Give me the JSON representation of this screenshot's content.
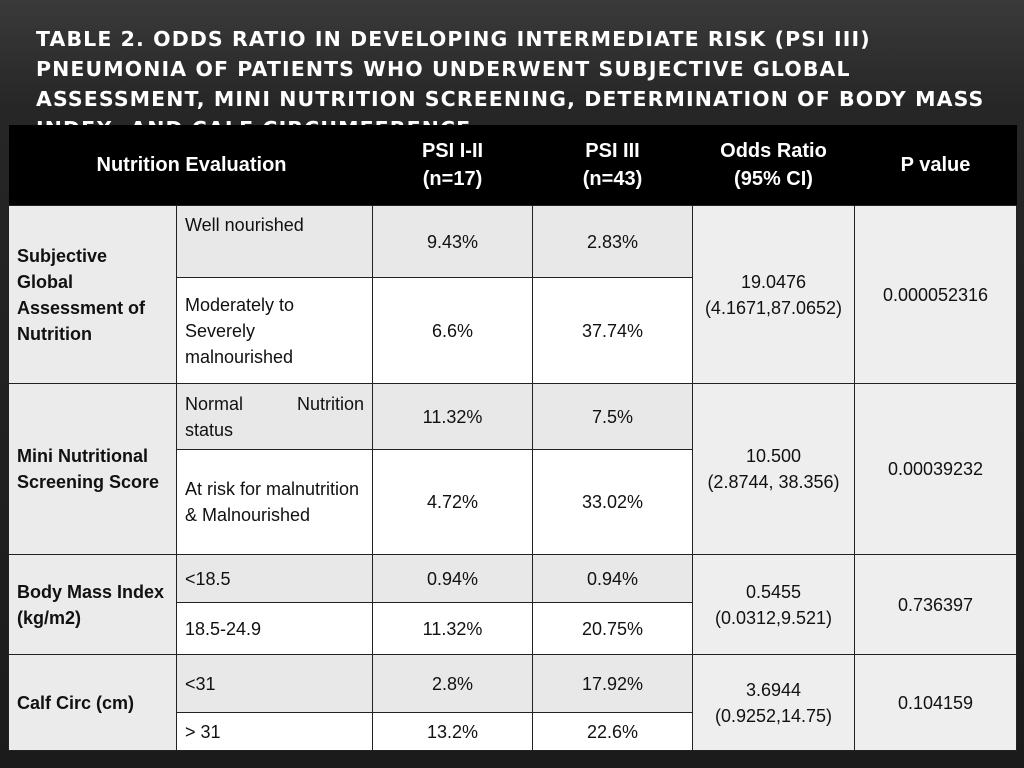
{
  "title": "Table 2. Odds Ratio in Developing Intermediate Risk (PSI III) Pneumonia of Patients who underwent Subjective Global Assessment, Mini Nutrition Screening, Determination of Body Mass Index, and Calf Circumference",
  "headers": {
    "evaluation": "Nutrition Evaluation",
    "psi12_line1": "PSI I-II",
    "psi12_line2": "(n=17)",
    "psi3_line1": "PSI III",
    "psi3_line2": "(n=43)",
    "odds_line1": "Odds Ratio",
    "odds_line2": "(95% CI)",
    "pvalue": "P value"
  },
  "groups": [
    {
      "label": "Subjective Global Assessment of Nutrition",
      "odds_ratio": "19.0476",
      "ci": "(4.1671,87.0652)",
      "p_value": "0.000052316",
      "rows": [
        {
          "label": "Well nourished",
          "psi12": "9.43%",
          "psi3": "2.83%"
        },
        {
          "label": "Moderately to Severely malnourished",
          "psi12": "6.6%",
          "psi3": "37.74%"
        }
      ]
    },
    {
      "label": "Mini Nutritional Screening Score",
      "odds_ratio": "10.500",
      "ci": "(2.8744, 38.356)",
      "p_value": "0.00039232",
      "rows": [
        {
          "label_a": "Normal",
          "label_b": "Nutrition",
          "label_c": "status",
          "psi12": "11.32%",
          "psi3": "7.5%"
        },
        {
          "label": "At risk for malnutrition & Malnourished",
          "psi12": "4.72%",
          "psi3": "33.02%"
        }
      ]
    },
    {
      "label": "Body Mass Index (kg/m2)",
      "odds_ratio": "0.5455",
      "ci": "(0.0312,9.521)",
      "p_value": "0.736397",
      "rows": [
        {
          "label": "<18.5",
          "psi12": "0.94%",
          "psi3": "0.94%"
        },
        {
          "label": "18.5-24.9",
          "psi12": "11.32%",
          "psi3": "20.75%"
        }
      ]
    },
    {
      "label": "Calf Circ (cm)",
      "odds_ratio": "3.6944",
      "ci": "(0.9252,14.75)",
      "p_value": "0.104159",
      "rows": [
        {
          "label": "<31",
          "psi12": "2.8%",
          "psi3": "17.92%"
        },
        {
          "label": "> 31",
          "psi12": "13.2%",
          "psi3": "22.6%"
        }
      ]
    }
  ]
}
